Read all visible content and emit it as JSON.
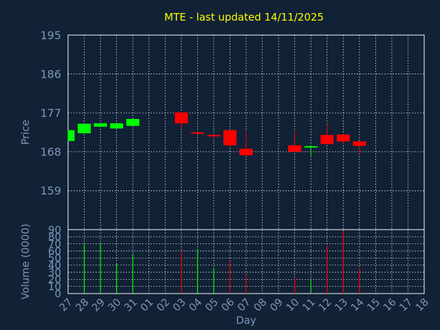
{
  "title": "MTE - last updated 14/11/2025",
  "colors": {
    "background": "#112136",
    "title": "#FFFF00",
    "axis_text": "#7F95B8",
    "frame": "#FFFFFF",
    "grid": "#FFFFFF",
    "up": "#00FF00",
    "down": "#FF0000"
  },
  "chart_data": [
    {
      "type": "candlestick",
      "panel": "price",
      "ylabel": "Price",
      "ylim": [
        150,
        195
      ],
      "yticks": [
        159,
        168,
        177,
        186,
        195
      ],
      "grid": true,
      "x": [
        "27",
        "28",
        "29",
        "30",
        "31",
        "01",
        "02",
        "03",
        "04",
        "05",
        "06",
        "07",
        "08",
        "09",
        "10",
        "11",
        "12",
        "13",
        "14",
        "15",
        "16",
        "17",
        "18"
      ],
      "candles": [
        {
          "day": "27",
          "open": 170.5,
          "high": 173.0,
          "low": 170.5,
          "close": 173.0
        },
        {
          "day": "28",
          "open": 172.3,
          "high": 174.5,
          "low": 172.3,
          "close": 174.5
        },
        {
          "day": "29",
          "open": 173.8,
          "high": 174.6,
          "low": 173.8,
          "close": 174.6
        },
        {
          "day": "30",
          "open": 173.4,
          "high": 174.6,
          "low": 173.4,
          "close": 174.6
        },
        {
          "day": "31",
          "open": 174.0,
          "high": 175.6,
          "low": 174.0,
          "close": 175.6
        },
        {
          "day": "03",
          "open": 177.1,
          "high": 177.1,
          "low": 173.3,
          "close": 174.6
        },
        {
          "day": "04",
          "open": 172.5,
          "high": 172.7,
          "low": 171.9,
          "close": 172.2
        },
        {
          "day": "05",
          "open": 171.9,
          "high": 172.0,
          "low": 170.8,
          "close": 171.6
        },
        {
          "day": "06",
          "open": 173.0,
          "high": 173.0,
          "low": 169.0,
          "close": 169.5
        },
        {
          "day": "07",
          "open": 168.7,
          "high": 172.8,
          "low": 167.0,
          "close": 167.2
        },
        {
          "day": "10",
          "open": 169.5,
          "high": 172.8,
          "low": 167.9,
          "close": 168.0
        },
        {
          "day": "11",
          "open": 169.0,
          "high": 169.5,
          "low": 166.9,
          "close": 169.3
        },
        {
          "day": "12",
          "open": 171.9,
          "high": 174.5,
          "low": 169.8,
          "close": 169.8
        },
        {
          "day": "13",
          "open": 172.0,
          "high": 172.0,
          "low": 169.9,
          "close": 170.4
        },
        {
          "day": "14",
          "open": 170.4,
          "high": 170.5,
          "low": 167.5,
          "close": 169.4
        }
      ]
    },
    {
      "type": "bar",
      "panel": "volume",
      "ylabel": "Volume (0000)",
      "xlabel": "Day",
      "ylim": [
        0,
        90
      ],
      "yticks": [
        0,
        10,
        20,
        30,
        40,
        50,
        60,
        70,
        80,
        90
      ],
      "grid": true,
      "x": [
        "27",
        "28",
        "29",
        "30",
        "31",
        "01",
        "02",
        "03",
        "04",
        "05",
        "06",
        "07",
        "08",
        "09",
        "10",
        "11",
        "12",
        "13",
        "14",
        "15",
        "16",
        "17",
        "18"
      ],
      "bars": [
        {
          "day": "28",
          "value": 71,
          "direction": "up"
        },
        {
          "day": "29",
          "value": 71,
          "direction": "up"
        },
        {
          "day": "30",
          "value": 42,
          "direction": "up"
        },
        {
          "day": "31",
          "value": 56,
          "direction": "up"
        },
        {
          "day": "03",
          "value": 60,
          "direction": "down"
        },
        {
          "day": "04",
          "value": 63,
          "direction": "up"
        },
        {
          "day": "05",
          "value": 36,
          "direction": "up"
        },
        {
          "day": "06",
          "value": 46,
          "direction": "down"
        },
        {
          "day": "07",
          "value": 27,
          "direction": "down"
        },
        {
          "day": "10",
          "value": 21,
          "direction": "down"
        },
        {
          "day": "11",
          "value": 21,
          "direction": "up"
        },
        {
          "day": "12",
          "value": 67,
          "direction": "down"
        },
        {
          "day": "13",
          "value": 88,
          "direction": "down"
        },
        {
          "day": "14",
          "value": 36,
          "direction": "down"
        }
      ]
    }
  ]
}
